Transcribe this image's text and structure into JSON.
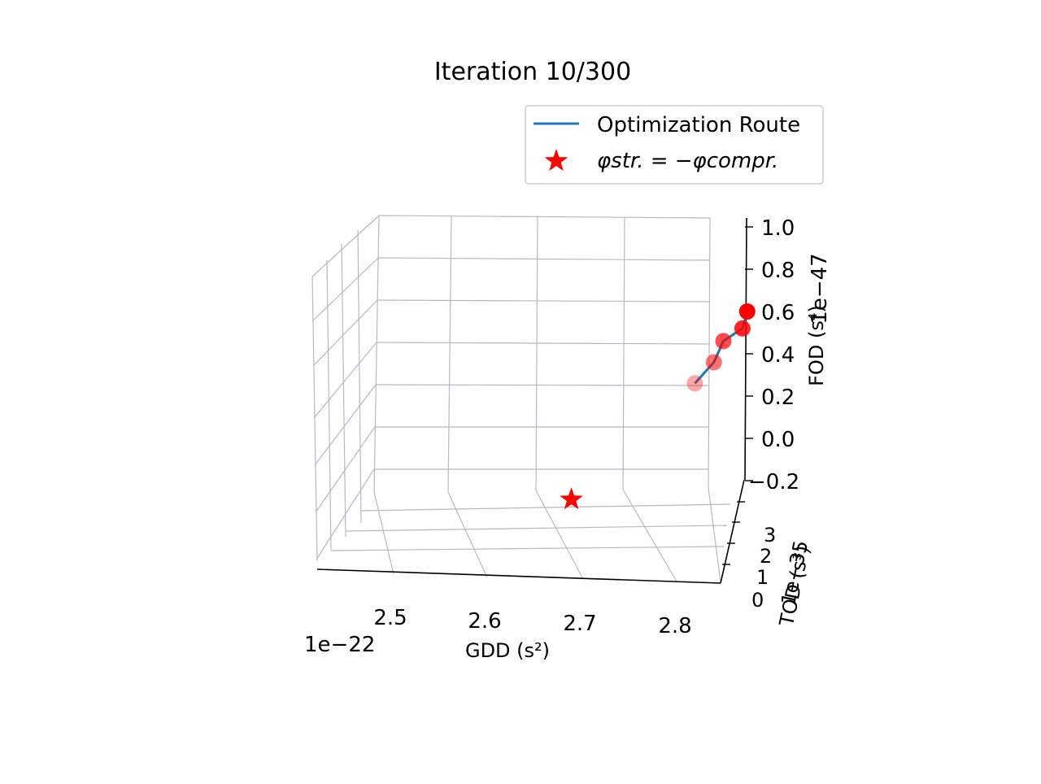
{
  "chart_data": {
    "type": "line3d",
    "title": "Iteration 10/300",
    "xlabel": "GDD (s²)",
    "ylabel": "TOD (s³)",
    "zlabel": "FOD (s⁴)",
    "x_offset": "1e−22",
    "y_offset": "1e−35",
    "z_offset": "1e−47",
    "x_ticks": [
      "2.5",
      "2.6",
      "2.7",
      "2.8"
    ],
    "y_ticks": [
      "0",
      "1",
      "2",
      "3"
    ],
    "z_ticks": [
      "1.0",
      "0.8",
      "0.6",
      "0.4",
      "0.2",
      "0.0",
      "−0.2"
    ],
    "legend": {
      "placement": "top-right",
      "entries": [
        {
          "label": "Optimization Route",
          "color": "#1f77b4",
          "marker": "line"
        },
        {
          "label": "φstr. = −φcompr.",
          "color": "#ff0000",
          "marker": "star"
        }
      ]
    },
    "grid": true,
    "route_color": "#1f77b4",
    "point_color": "#ff0000",
    "route_points": [
      {
        "x": 2.82,
        "y": 1.5,
        "z": 0.26,
        "alpha": 0.35
      },
      {
        "x": 2.84,
        "y": 1.5,
        "z": 0.36,
        "alpha": 0.55
      },
      {
        "x": 2.85,
        "y": 1.5,
        "z": 0.46,
        "alpha": 0.7
      },
      {
        "x": 2.87,
        "y": 1.5,
        "z": 0.52,
        "alpha": 0.85
      },
      {
        "x": 2.875,
        "y": 1.5,
        "z": 0.6,
        "alpha": 1.0
      }
    ],
    "target_point": {
      "x": 2.68,
      "y": 1.5,
      "z": -0.12,
      "marker": "star"
    }
  }
}
